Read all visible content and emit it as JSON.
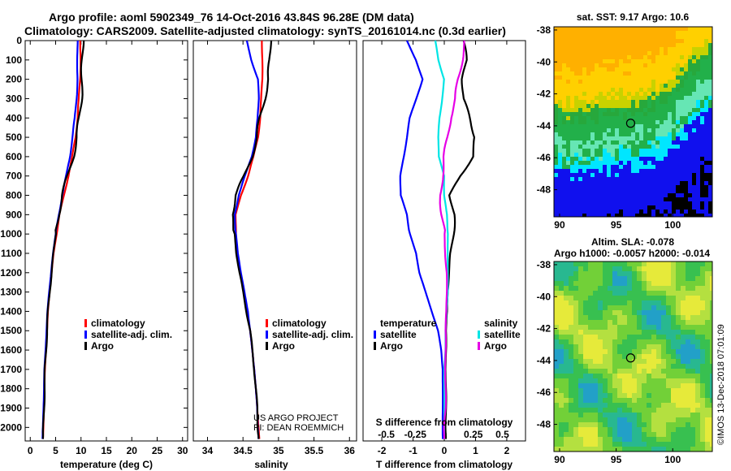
{
  "title": {
    "line1": "Argo profile: aoml 5902349_76 14-Oct-2016 43.84S 96.28E (DM data)",
    "line2": "Climatology: CARS2009. Satellite-adjusted climatology: synTS_20161014.nc (0.3d earlier)"
  },
  "credit": {
    "line1": "US ARGO PROJECT",
    "line2": "PI: DEAN ROEMMICH"
  },
  "sidebar_stamp": "©IMOS 13-Dec-2018 07:01:09",
  "map_top_title": "sat. SST: 9.17 Argo: 10.6",
  "map_bottom_title1": "Altim. SLA: -0.078",
  "map_bottom_title2": "Argo h1000: -0.0057 h2000: -0.014",
  "colors": {
    "climatology": "#ff0000",
    "satellite": "#0000ff",
    "argo": "#000000",
    "salinity_satellite": "#00e5e5",
    "salinity_argo": "#e600e6"
  },
  "chart_data": [
    {
      "type": "line",
      "name": "temperature-profile",
      "xlabel": "temperature (deg C)",
      "ylabel": "depth",
      "xlim": [
        -1,
        31
      ],
      "ylim": [
        2070,
        0
      ],
      "xticks": [
        0,
        5,
        10,
        15,
        20,
        25,
        30
      ],
      "yticks": [
        0,
        100,
        200,
        300,
        400,
        500,
        600,
        700,
        800,
        900,
        1000,
        1100,
        1200,
        1300,
        1400,
        1500,
        1600,
        1700,
        1800,
        1900,
        2000
      ],
      "legend": [
        "climatology",
        "satellite-adj. clim.",
        "Argo"
      ],
      "series": [
        {
          "name": "climatology",
          "x": [
            9.9,
            9.9,
            9.8,
            9.6,
            9.3,
            8.9,
            8.3,
            7.5,
            6.6,
            5.8,
            5.2,
            4.6,
            4.2,
            3.8,
            3.5,
            3.3,
            3.1,
            2.9,
            2.8,
            2.7,
            2.6,
            2.5
          ],
          "y": [
            0,
            100,
            200,
            300,
            400,
            500,
            600,
            700,
            800,
            900,
            1000,
            1100,
            1200,
            1300,
            1400,
            1500,
            1600,
            1700,
            1800,
            1900,
            2000,
            2060
          ]
        },
        {
          "name": "satellite-adj. clim.",
          "x": [
            9.3,
            9.3,
            9.3,
            9.1,
            8.8,
            8.3,
            7.8,
            7.1,
            6.3,
            5.6,
            5.0,
            4.5,
            4.1,
            3.7,
            3.4,
            3.2,
            3.0,
            2.8,
            2.7,
            2.6,
            2.5,
            2.4
          ],
          "y": [
            0,
            100,
            200,
            300,
            400,
            500,
            600,
            700,
            800,
            900,
            1000,
            1100,
            1200,
            1300,
            1400,
            1500,
            1600,
            1700,
            1800,
            1900,
            2000,
            2060
          ]
        },
        {
          "name": "Argo",
          "x": [
            10.3,
            10.3,
            10.2,
            10.0,
            9.7,
            9.2,
            8.4,
            7.4,
            6.3,
            5.5,
            5.0,
            4.6,
            4.2,
            3.8,
            3.5,
            3.3,
            3.1,
            2.9,
            2.8,
            2.7,
            2.6,
            2.5
          ],
          "y": [
            0,
            100,
            200,
            300,
            400,
            500,
            600,
            700,
            800,
            900,
            1000,
            1100,
            1200,
            1300,
            1400,
            1500,
            1600,
            1700,
            1800,
            1900,
            2000,
            2060
          ]
        }
      ]
    },
    {
      "type": "line",
      "name": "salinity-profile",
      "xlabel": "salinity",
      "xlim": [
        33.8,
        36.1
      ],
      "ylim": [
        2070,
        0
      ],
      "xticks": [
        34,
        34.5,
        35,
        35.5,
        36
      ],
      "legend": [
        "climatology",
        "satellite-adj. clim.",
        "Argo"
      ],
      "series": [
        {
          "name": "climatology",
          "x": [
            34.77,
            34.77,
            34.77,
            34.76,
            34.74,
            34.71,
            34.65,
            34.57,
            34.47,
            34.4,
            34.4,
            34.42,
            34.46,
            34.51,
            34.56,
            34.6,
            34.63,
            34.66,
            34.68,
            34.7,
            34.72,
            34.73
          ],
          "y": [
            0,
            100,
            200,
            300,
            400,
            500,
            600,
            700,
            800,
            900,
            1000,
            1100,
            1200,
            1300,
            1400,
            1500,
            1600,
            1700,
            1800,
            1900,
            2000,
            2060
          ]
        },
        {
          "name": "satellite-adj. clim.",
          "x": [
            34.55,
            34.62,
            34.71,
            34.72,
            34.71,
            34.68,
            34.62,
            34.53,
            34.44,
            34.38,
            34.4,
            34.43,
            34.47,
            34.52,
            34.57,
            34.6,
            34.63,
            34.66,
            34.68,
            34.7,
            34.71,
            34.72
          ],
          "y": [
            0,
            100,
            200,
            300,
            400,
            500,
            600,
            700,
            800,
            900,
            1000,
            1100,
            1200,
            1300,
            1400,
            1500,
            1600,
            1700,
            1800,
            1900,
            2000,
            2060
          ]
        },
        {
          "name": "Argo",
          "x": [
            34.88,
            34.88,
            34.86,
            34.8,
            34.74,
            34.7,
            34.62,
            34.52,
            34.4,
            34.34,
            34.38,
            34.41,
            34.45,
            34.5,
            34.55,
            34.6,
            34.63,
            34.66,
            34.68,
            34.7,
            34.71,
            34.72
          ],
          "y": [
            0,
            100,
            200,
            300,
            400,
            500,
            600,
            700,
            800,
            900,
            1000,
            1100,
            1200,
            1300,
            1400,
            1500,
            1600,
            1700,
            1800,
            1900,
            2000,
            2060
          ]
        }
      ]
    },
    {
      "type": "line",
      "name": "difference-profile",
      "xlabel": "T difference from climatology",
      "xlabel_top": "S difference from climatology",
      "xlim": [
        -2.6,
        2.6
      ],
      "ylim": [
        2070,
        0
      ],
      "xticks": [
        -2,
        -1,
        0,
        1,
        2
      ],
      "xticks_top": [
        -0.5,
        -0.25,
        0,
        0.25,
        0.5
      ],
      "xtick_labels_top": [
        "-0.5",
        "-0.25",
        "0",
        "0.25",
        "0.5"
      ],
      "legend_groups": [
        {
          "title": "temperature",
          "entries": [
            "satellite",
            "Argo"
          ]
        },
        {
          "title": "salinity",
          "entries": [
            "satellite",
            "Argo"
          ]
        }
      ],
      "series": [
        {
          "name": "temperature satellite",
          "x": [
            -1.2,
            -0.9,
            -0.7,
            -0.9,
            -1.1,
            -1.2,
            -1.3,
            -1.4,
            -1.4,
            -1.2,
            -1.1,
            -0.9,
            -0.8,
            -0.6,
            -0.4,
            -0.2,
            -0.1,
            -0.05,
            -0.05,
            -0.05,
            -0.05,
            -0.05
          ],
          "y": [
            0,
            100,
            200,
            300,
            400,
            500,
            600,
            700,
            800,
            900,
            1000,
            1100,
            1200,
            1300,
            1400,
            1500,
            1600,
            1700,
            1800,
            1900,
            2000,
            2060
          ]
        },
        {
          "name": "temperature Argo",
          "x": [
            0.6,
            0.7,
            0.6,
            0.6,
            0.8,
            1.0,
            0.9,
            0.5,
            0.2,
            0.3,
            0.3,
            0.2,
            0.15,
            0.1,
            0.1,
            0.05,
            0.05,
            0.05,
            0.05,
            0.05,
            0.05,
            0.05
          ],
          "y": [
            0,
            100,
            200,
            300,
            400,
            500,
            600,
            700,
            800,
            900,
            1000,
            1100,
            1200,
            1300,
            1400,
            1500,
            1600,
            1700,
            1800,
            1900,
            2000,
            2060
          ]
        },
        {
          "name": "salinity satellite",
          "x": [
            -0.08,
            -0.05,
            0.0,
            -0.02,
            -0.04,
            -0.05,
            -0.05,
            0.0,
            0.0,
            0.02,
            0.03,
            0.03,
            0.03,
            0.03,
            0.02,
            0.01,
            0.01,
            0.0,
            0.0,
            0.0,
            0.0,
            0.0
          ],
          "y": [
            0,
            100,
            200,
            300,
            400,
            500,
            600,
            700,
            800,
            900,
            1000,
            1100,
            1200,
            1300,
            1400,
            1500,
            1600,
            1700,
            1800,
            1900,
            2000,
            2060
          ]
        },
        {
          "name": "salinity Argo",
          "x": [
            0.18,
            0.15,
            0.12,
            0.1,
            0.05,
            0.03,
            0.0,
            -0.02,
            -0.03,
            -0.02,
            0.0,
            0.01,
            0.02,
            0.02,
            0.02,
            0.01,
            0.01,
            0.01,
            0.01,
            0.01,
            0.0,
            0.0
          ],
          "y": [
            0,
            100,
            200,
            300,
            400,
            500,
            600,
            700,
            800,
            900,
            1000,
            1100,
            1200,
            1300,
            1400,
            1500,
            1600,
            1700,
            1800,
            1900,
            2000,
            2060
          ]
        }
      ]
    },
    {
      "type": "heatmap",
      "name": "sst-map",
      "title": "sat. SST: 9.17 Argo: 10.6",
      "xlim": [
        89.5,
        103.5
      ],
      "ylim": [
        -49.7,
        -37.8
      ],
      "xticks": [
        90,
        95,
        100
      ],
      "yticks": [
        -38,
        -40,
        -42,
        -44,
        -46,
        -48
      ],
      "float_position": {
        "lon": 96.28,
        "lat": -43.84
      }
    },
    {
      "type": "heatmap",
      "name": "sla-map",
      "title": "Altim. SLA: -0.078",
      "subtitle": "Argo h1000: -0.0057 h2000: -0.014",
      "xlim": [
        89.5,
        103.5
      ],
      "ylim": [
        -49.7,
        -37.8
      ],
      "xticks": [
        90,
        95,
        100
      ],
      "yticks": [
        -38,
        -40,
        -42,
        -44,
        -46,
        -48
      ],
      "float_position": {
        "lon": 96.28,
        "lat": -43.84
      }
    }
  ]
}
